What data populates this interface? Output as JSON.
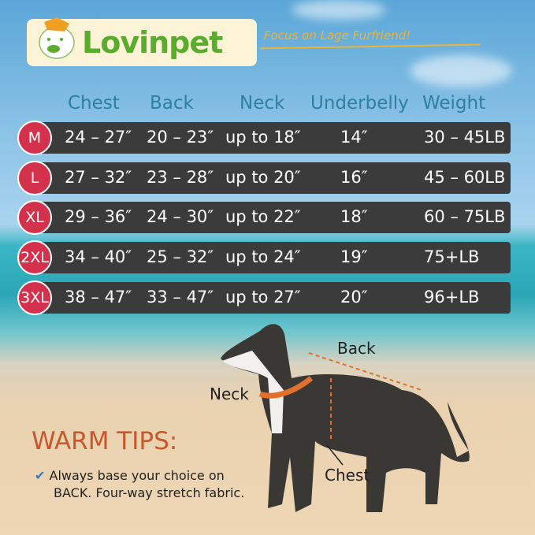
{
  "logo": {
    "brand": "Lovinpet",
    "tagline": "Focus on Lage Furfriend!"
  },
  "headers": [
    "Chest",
    "Back",
    "Neck",
    "Underbelly",
    "Weight"
  ],
  "rows": [
    {
      "size": "M",
      "chest": "24 – 27″",
      "back": "20 – 23″",
      "neck": "up to 18″",
      "underbelly": "14″",
      "weight": "30 – 45LB"
    },
    {
      "size": "L",
      "chest": "27 – 32″",
      "back": "23 – 28″",
      "neck": "up to 20″",
      "underbelly": "16″",
      "weight": "45 – 60LB"
    },
    {
      "size": "XL",
      "chest": "29 – 36″",
      "back": "24 – 30″",
      "neck": "up to 22″",
      "underbelly": "18″",
      "weight": "60 – 75LB"
    },
    {
      "size": "2XL",
      "chest": "34 – 40″",
      "back": "25 – 32″",
      "neck": "up to 24″",
      "underbelly": "19″",
      "weight": "75+LB"
    },
    {
      "size": "3XL",
      "chest": "38 – 47″",
      "back": "33 – 47″",
      "neck": "up to 27″",
      "underbelly": "20″",
      "weight": "96+LB"
    }
  ],
  "diagram": {
    "back": "Back",
    "neck": "Neck",
    "chest": "Chest"
  },
  "tips": {
    "title": "WARM TIPS:",
    "line1": "Always base your choice on",
    "line2": "BACK. Four-way stretch fabric."
  },
  "colors": {
    "size_badge": "#d4314c",
    "row": "#3c3b3b",
    "header": "#2e7fa0",
    "brand": "#5aac2e",
    "tips": "#c8582c"
  }
}
